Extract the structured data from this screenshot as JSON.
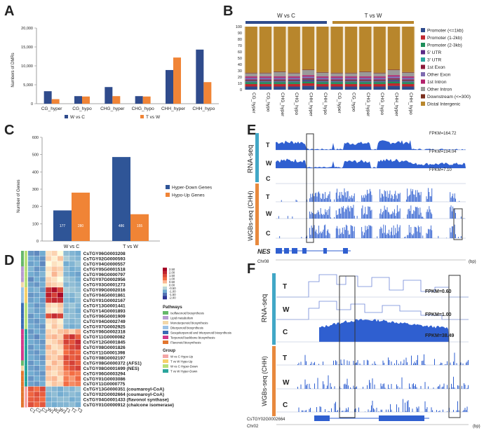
{
  "panels": {
    "A": {
      "letter": "A",
      "ylabel": "Numbers of DMRs",
      "yticks": [
        "0",
        "5,000",
        "10,000",
        "15,000",
        "20,000"
      ],
      "legend": [
        "W vs C",
        "T vs W"
      ],
      "colors": [
        "#2F4B8C",
        "#F08436"
      ]
    },
    "B": {
      "letter": "B",
      "group1": "W vs C",
      "group2": "T vs W",
      "yticks": [
        "0",
        "10",
        "20",
        "30",
        "40",
        "50",
        "60",
        "70",
        "80",
        "90",
        "100"
      ],
      "legend": [
        "Promoter (<=1kb)",
        "Promoter (1-2kb)",
        "Promoter (2-3kb)",
        "5' UTR",
        "3' UTR",
        "1st Exon",
        "Other Exon",
        "1st Intron",
        "Other Intron",
        "Downstream (<=300)",
        "Distal Intergenic"
      ],
      "legend_colors": [
        "#2F4B8C",
        "#C1272D",
        "#1E8E5A",
        "#5B2A86",
        "#2AA6A0",
        "#8B1A3A",
        "#7E6BB0",
        "#B2206B",
        "#9A9A9A",
        "#7A2E1E",
        "#B8862C"
      ]
    },
    "C": {
      "letter": "C",
      "ylabel": "Number of Genes",
      "yticks": [
        "0",
        "100",
        "200",
        "300",
        "400",
        "500",
        "600"
      ],
      "legend": [
        "Hyper-Down Genes",
        "Hypo-Up Genes"
      ],
      "colors": [
        "#2F5597",
        "#F08436"
      ]
    },
    "D": {
      "letter": "D",
      "scale": [
        "2.50",
        "2.00",
        "1.50",
        "1.00",
        "0.50",
        "0.00",
        "-0.50",
        "-1.00",
        "-1.50",
        "-2.00"
      ],
      "pathways_title": "Pathways",
      "pathways": [
        "Isoflavonoid biosynthesis",
        "Lipid metabolism",
        "Monoterpenoid biosynthesis",
        "Diterpenoid biosynthesis",
        "Sesquiterpenoid and triterpenoid biosynthesis",
        "Terpenoid backbone biosynthesis",
        "Flavonoid biosynthesis"
      ],
      "pathway_colors": [
        "#66B86A",
        "#B79BD1",
        "#F2D7A8",
        "#9BC2E6",
        "#3B6CB5",
        "#D23A8B",
        "#E2762F"
      ],
      "group_title": "Group",
      "groups": [
        "W vs C Hypo-Up",
        "T vs W Hypo-Up",
        "W vs C Hyper-Down",
        "T vs W Hyper-Down"
      ],
      "group_colors": [
        "#F4A6A6",
        "#F6D06A",
        "#B7E07A",
        "#2AA59C"
      ],
      "columns": [
        "C1",
        "C2",
        "C3",
        "W1",
        "W2",
        "W3",
        "T1",
        "T2",
        "T3"
      ],
      "genes": [
        "CsTGY06G0003208",
        "CsTGY02G0000593",
        "CsTGY04G0000557",
        "CsTGY05G0001518",
        "CsTGY06G0000797",
        "CsTGY07G0002956",
        "CsTGY03G0001273",
        "CsTGY09G0002016",
        "CsTGY04G0001861",
        "CsTGY01G0002167",
        "CsTGY13G0001441",
        "CsTGY14G0001893",
        "CsTGY06G0001909",
        "CsTGY04G0002749",
        "CsTGY07G0002925",
        "CsTGY06G0002318",
        "CsTGY11G0000082",
        "CsTGY12G0001845",
        "CsTGY08G0001826",
        "CsTGY11G0001398",
        "CsTGY08G0002197",
        "CsTGY08G0000372 (AFS1)",
        "CsTGY08G0001699 (NES)",
        "CsTGY06G0003294",
        "CsTGY01G0003086",
        "CsTGY11G0000775",
        "CsTGY13G0000351 (coumaroyl-CoA)",
        "CsTGY02G0002664 (coumaroyl-CoA)",
        "CsTGY04G0001433 (flavonol synthase)",
        "CsTGY01G0000912 (chalcone isomerase)"
      ],
      "values": [
        [
          -1.2,
          -1.3,
          -1.0,
          0.2,
          0.3,
          0.0,
          -0.8,
          -0.9,
          -1.0
        ],
        [
          -1.0,
          -1.1,
          -1.2,
          0.3,
          0.1,
          0.4,
          -0.6,
          -0.8,
          -0.9
        ],
        [
          -1.1,
          -1.0,
          -1.3,
          0.0,
          0.2,
          0.1,
          -1.0,
          -0.9,
          -0.7
        ],
        [
          -0.9,
          -1.2,
          -1.1,
          0.2,
          0.4,
          0.3,
          -0.8,
          -1.0,
          -0.9
        ],
        [
          -1.0,
          -1.1,
          -0.9,
          0.1,
          0.5,
          0.2,
          -0.9,
          -1.0,
          -1.1
        ],
        [
          -1.3,
          -1.0,
          -1.1,
          0.3,
          0.2,
          0.0,
          -0.7,
          -0.8,
          -1.0
        ],
        [
          -1.1,
          -1.2,
          -1.0,
          0.4,
          0.3,
          0.2,
          -0.9,
          -0.8,
          -0.9
        ],
        [
          -1.0,
          -0.9,
          -1.2,
          1.8,
          2.3,
          1.5,
          -0.6,
          -0.7,
          -0.8
        ],
        [
          -1.2,
          -1.1,
          -1.0,
          2.1,
          1.6,
          2.4,
          -0.8,
          -0.9,
          -0.7
        ],
        [
          -1.1,
          -1.0,
          -1.2,
          1.7,
          2.0,
          1.9,
          -0.9,
          -1.0,
          -0.8
        ],
        [
          -1.0,
          -1.2,
          -1.1,
          0.3,
          0.2,
          0.4,
          -0.8,
          -0.7,
          -0.9
        ],
        [
          -0.9,
          -1.1,
          -1.0,
          0.2,
          0.1,
          0.3,
          -0.9,
          -0.8,
          -1.0
        ],
        [
          -1.2,
          -1.0,
          -1.1,
          1.4,
          1.9,
          1.6,
          -0.7,
          -0.8,
          -0.9
        ],
        [
          -1.1,
          -1.2,
          -1.0,
          0.2,
          0.3,
          0.1,
          -0.8,
          -0.9,
          -0.8
        ],
        [
          -1.0,
          -1.1,
          -1.2,
          0.1,
          0.4,
          0.2,
          -0.9,
          -1.0,
          -0.9
        ],
        [
          -1.2,
          -1.0,
          -1.1,
          0.3,
          0.2,
          0.4,
          0.5,
          0.3,
          0.6
        ],
        [
          -1.1,
          -1.3,
          -1.0,
          0.4,
          0.5,
          0.3,
          1.4,
          1.8,
          1.2
        ],
        [
          -1.0,
          -1.1,
          -1.2,
          0.2,
          0.3,
          0.5,
          1.6,
          1.3,
          1.9
        ],
        [
          -1.2,
          -1.0,
          -1.1,
          0.5,
          0.2,
          0.3,
          1.2,
          1.5,
          1.7
        ],
        [
          -1.1,
          -1.2,
          -1.0,
          0.3,
          0.4,
          0.2,
          1.0,
          1.3,
          1.1
        ],
        [
          -1.0,
          -1.1,
          -1.2,
          0.4,
          0.3,
          0.5,
          1.5,
          1.2,
          1.4
        ],
        [
          -1.2,
          -1.0,
          -1.1,
          0.2,
          0.5,
          0.3,
          1.3,
          1.6,
          1.2
        ],
        [
          -1.1,
          -1.2,
          -1.0,
          0.5,
          0.3,
          0.4,
          1.1,
          1.4,
          1.6
        ],
        [
          -1.0,
          -1.1,
          -1.2,
          0.3,
          0.2,
          0.4,
          0.8,
          1.0,
          0.9
        ],
        [
          -1.2,
          -1.0,
          -1.1,
          0.4,
          0.5,
          0.2,
          0.9,
          0.7,
          1.1
        ],
        [
          -1.1,
          -1.2,
          -1.0,
          0.2,
          0.4,
          0.3,
          1.0,
          0.8,
          0.9
        ],
        [
          1.3,
          1.0,
          1.5,
          -0.8,
          -0.9,
          -1.0,
          -0.8,
          -0.9,
          -0.7
        ],
        [
          1.1,
          1.4,
          1.2,
          -0.9,
          -0.8,
          -1.0,
          -0.9,
          -0.8,
          -0.9
        ],
        [
          1.2,
          1.3,
          1.0,
          -1.0,
          -0.9,
          -0.8,
          -0.8,
          -1.0,
          -0.9
        ],
        [
          1.4,
          1.1,
          1.3,
          -0.9,
          -1.0,
          -0.9,
          -0.9,
          -0.8,
          -1.0
        ]
      ],
      "row_pathway": [
        0,
        0,
        0,
        1,
        1,
        1,
        2,
        3,
        3,
        3,
        4,
        4,
        4,
        4,
        4,
        5,
        5,
        5,
        5,
        5,
        5,
        0,
        2,
        6,
        6,
        6,
        6,
        6,
        6,
        6
      ],
      "row_group": [
        2,
        2,
        2,
        2,
        2,
        2,
        2,
        1,
        1,
        1,
        2,
        2,
        2,
        2,
        2,
        3,
        3,
        3,
        3,
        3,
        3,
        3,
        3,
        3,
        3,
        3,
        0,
        0,
        0,
        0
      ]
    },
    "E": {
      "letter": "E",
      "rna_label": "RNA-seq",
      "wgbs_label": "WGBs-seq (CHH)",
      "tracks": [
        "T",
        "W",
        "C",
        "T",
        "W",
        "C"
      ],
      "fpkm": [
        "FPKM=164.72",
        "FPKM=194.04",
        "FPKM=7.10"
      ],
      "gene": "NES",
      "chrom": "Chr08",
      "unit": "(bp)"
    },
    "F": {
      "letter": "F",
      "rna_label": "RNA-seq",
      "wgbs_label": "WGBs-seq (CHH)",
      "tracks": [
        "T",
        "W",
        "C",
        "T",
        "W",
        "C"
      ],
      "fpkm": [
        "FPKM=0.60",
        "FPKM=1.00",
        "FPKM=38.49"
      ],
      "gene": "CsTGY02G0002664",
      "chrom": "Chr02",
      "unit": "(bp)"
    }
  },
  "chart_data": [
    {
      "type": "bar",
      "title": "",
      "xlabel": "",
      "ylabel": "Numbers of DMRs",
      "ylim": [
        0,
        20000
      ],
      "categories": [
        "CG_hyper",
        "CG_hypo",
        "CHG_hyper",
        "CHG_hypo",
        "CHH_hyper",
        "CHH_hypo"
      ],
      "series": [
        {
          "name": "W vs C",
          "values": [
            3300,
            2000,
            4400,
            2000,
            8900,
            14300
          ]
        },
        {
          "name": "T vs W",
          "values": [
            1200,
            1900,
            2000,
            1900,
            12200,
            5700
          ]
        }
      ]
    },
    {
      "type": "bar",
      "stacked": true,
      "title": "",
      "ylim": [
        0,
        100
      ],
      "categories": [
        "CG_hyper",
        "CG_hypo",
        "CHG_hyper",
        "CHG_hypo",
        "CHH_hyper",
        "CHH_hypo",
        "CG_hyper",
        "CG_hypo",
        "CHG_hyper",
        "CHG_hypo",
        "CHH_hyper",
        "CHH_hypo"
      ],
      "groups": [
        "W vs C",
        "W vs C",
        "W vs C",
        "W vs C",
        "W vs C",
        "W vs C",
        "T vs W",
        "T vs W",
        "T vs W",
        "T vs W",
        "T vs W",
        "T vs W"
      ],
      "series": [
        {
          "name": "Promoter (<=1kb)",
          "values": [
            5,
            5,
            5,
            5,
            6,
            5,
            5,
            5,
            5,
            5,
            6,
            5
          ]
        },
        {
          "name": "Promoter (1-2kb)",
          "values": [
            4,
            4,
            4,
            4,
            4,
            4,
            4,
            4,
            4,
            4,
            4,
            4
          ]
        },
        {
          "name": "Promoter (2-3kb)",
          "values": [
            3,
            3,
            3,
            3,
            3,
            3,
            3,
            3,
            3,
            3,
            3,
            3
          ]
        },
        {
          "name": "5' UTR",
          "values": [
            1,
            1,
            1,
            1,
            2,
            1,
            1,
            1,
            1,
            1,
            2,
            1
          ]
        },
        {
          "name": "3' UTR",
          "values": [
            1,
            1,
            1,
            1,
            1,
            1,
            1,
            1,
            1,
            1,
            1,
            1
          ]
        },
        {
          "name": "1st Exon",
          "values": [
            2,
            2,
            2,
            2,
            2,
            2,
            2,
            2,
            2,
            2,
            2,
            2
          ]
        },
        {
          "name": "Other Exon",
          "values": [
            3,
            3,
            3,
            3,
            3,
            3,
            3,
            3,
            3,
            3,
            3,
            3
          ]
        },
        {
          "name": "1st Intron",
          "values": [
            2,
            2,
            2,
            2,
            2,
            2,
            2,
            2,
            2,
            2,
            2,
            2
          ]
        },
        {
          "name": "Other Intron",
          "values": [
            5,
            5,
            7,
            5,
            8,
            6,
            5,
            5,
            7,
            5,
            8,
            6
          ]
        },
        {
          "name": "Downstream (<=300)",
          "values": [
            1,
            1,
            1,
            1,
            1,
            1,
            1,
            1,
            1,
            1,
            1,
            1
          ]
        },
        {
          "name": "Distal Intergenic",
          "values": [
            73,
            73,
            71,
            73,
            68,
            72,
            73,
            73,
            71,
            73,
            68,
            72
          ]
        }
      ]
    },
    {
      "type": "bar",
      "title": "",
      "ylabel": "Number of Genes",
      "ylim": [
        0,
        600
      ],
      "categories": [
        "W vs C",
        "T vs W"
      ],
      "series": [
        {
          "name": "Hyper-Down Genes",
          "values": [
            177,
            486
          ]
        },
        {
          "name": "Hypo-Up Genes",
          "values": [
            280,
            155
          ]
        }
      ],
      "data_labels": [
        "177",
        "280",
        "486",
        "155"
      ]
    },
    {
      "type": "heatmap",
      "title": "",
      "x": [
        "C1",
        "C2",
        "C3",
        "W1",
        "W2",
        "W3",
        "T1",
        "T2",
        "T3"
      ],
      "colorbar_range": [
        -2.0,
        2.5
      ]
    }
  ]
}
